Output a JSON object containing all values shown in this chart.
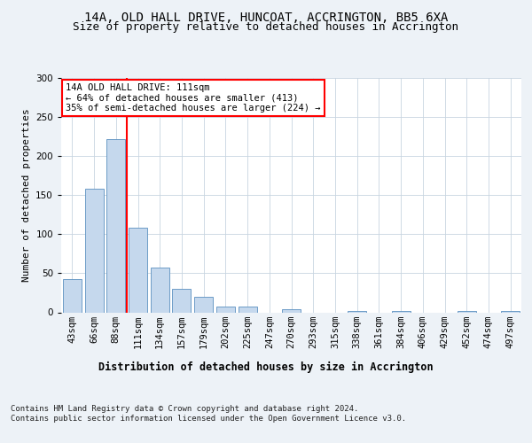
{
  "title1": "14A, OLD HALL DRIVE, HUNCOAT, ACCRINGTON, BB5 6XA",
  "title2": "Size of property relative to detached houses in Accrington",
  "xlabel": "Distribution of detached houses by size in Accrington",
  "ylabel": "Number of detached properties",
  "footnote": "Contains HM Land Registry data © Crown copyright and database right 2024.\nContains public sector information licensed under the Open Government Licence v3.0.",
  "bar_labels": [
    "43sqm",
    "66sqm",
    "88sqm",
    "111sqm",
    "134sqm",
    "157sqm",
    "179sqm",
    "202sqm",
    "225sqm",
    "247sqm",
    "270sqm",
    "293sqm",
    "315sqm",
    "338sqm",
    "361sqm",
    "384sqm",
    "406sqm",
    "429sqm",
    "452sqm",
    "474sqm",
    "497sqm"
  ],
  "bar_values": [
    42,
    158,
    221,
    108,
    57,
    30,
    20,
    7,
    7,
    0,
    4,
    0,
    0,
    2,
    0,
    2,
    0,
    0,
    2,
    0,
    2
  ],
  "bar_color": "#c5d8ed",
  "bar_edge_color": "#5a8fc0",
  "vline_color": "red",
  "annotation_text": "14A OLD HALL DRIVE: 111sqm\n← 64% of detached houses are smaller (413)\n35% of semi-detached houses are larger (224) →",
  "annotation_box_color": "white",
  "annotation_box_edge": "red",
  "ylim": [
    0,
    300
  ],
  "yticks": [
    0,
    50,
    100,
    150,
    200,
    250,
    300
  ],
  "bg_color": "#edf2f7",
  "plot_bg_color": "white",
  "grid_color": "#c8d4e0",
  "title1_fontsize": 10,
  "title2_fontsize": 9,
  "xlabel_fontsize": 8.5,
  "ylabel_fontsize": 8,
  "tick_fontsize": 7.5,
  "annotation_fontsize": 7.5,
  "footnote_fontsize": 6.5
}
